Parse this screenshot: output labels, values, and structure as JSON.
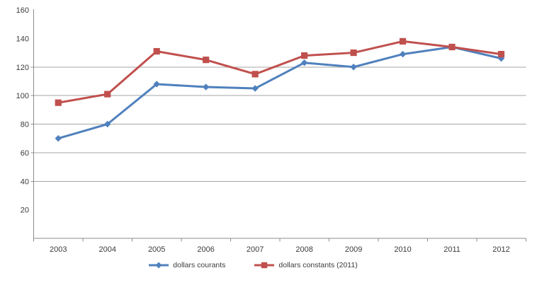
{
  "chart_data": {
    "type": "line",
    "categories": [
      "2003",
      "2004",
      "2005",
      "2006",
      "2007",
      "2008",
      "2009",
      "2010",
      "2011",
      "2012"
    ],
    "series": [
      {
        "name": "dollars courants",
        "color": "#4F81BD",
        "marker": "diamond",
        "values": [
          70,
          80,
          108,
          106,
          105,
          123,
          120,
          129,
          134,
          126
        ]
      },
      {
        "name": "dollars constants (2011)",
        "color": "#C0504D",
        "marker": "square",
        "values": [
          95,
          101,
          131,
          125,
          115,
          128,
          130,
          138,
          134,
          129
        ]
      }
    ],
    "ylim": [
      0,
      160
    ],
    "ytick_values": [
      20,
      40,
      60,
      80,
      100,
      120,
      140,
      160
    ],
    "gridline_values": [
      40,
      60,
      80,
      100,
      120
    ],
    "grid": "horizontal-partial",
    "legend_position": "bottom"
  },
  "colors": {
    "axis": "#8c8c8c",
    "gridline": "#a6a6a6",
    "label_text": "#3b3b3b",
    "background": "#ffffff"
  }
}
